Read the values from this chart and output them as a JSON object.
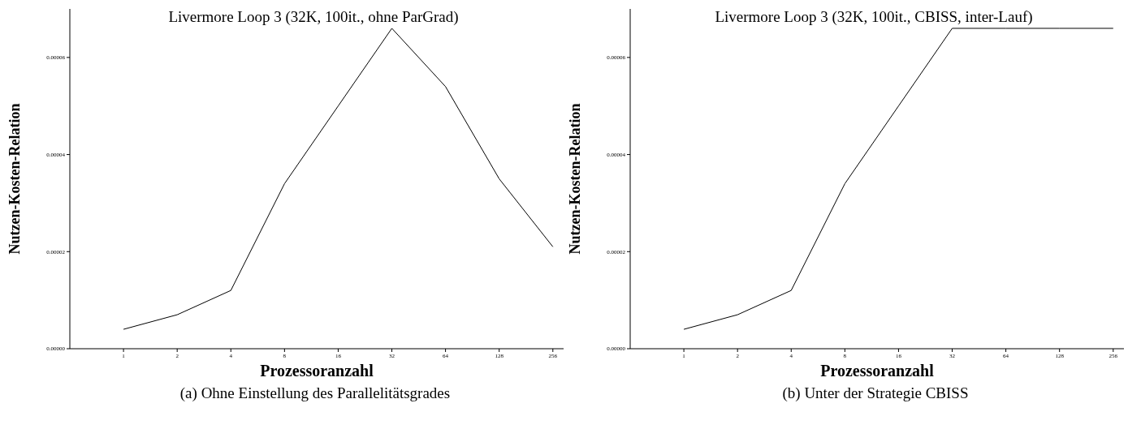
{
  "chart_data": [
    {
      "type": "line",
      "title": "Livermore Loop 3 (32K, 100it., ohne ParGrad)",
      "xlabel": "Prozessoranzahl",
      "ylabel": "Nutzen-Kosten-Relation",
      "categories": [
        "1",
        "2",
        "4",
        "8",
        "16",
        "32",
        "64",
        "128",
        "256"
      ],
      "series": [
        {
          "color": "#000000",
          "values": [
            4e-06,
            7e-06,
            1.2e-05,
            3.4e-05,
            5e-05,
            6.6e-05,
            5.4e-05,
            3.5e-05,
            2.1e-05
          ]
        }
      ],
      "ylim": [
        0,
        7e-05
      ],
      "yticks": [
        {
          "value": 0,
          "label": "0.00000"
        },
        {
          "value": 2e-05,
          "label": "0.00002"
        },
        {
          "value": 4e-05,
          "label": "0.00004"
        },
        {
          "value": 6e-05,
          "label": "0.00006"
        }
      ],
      "grid": false,
      "legend": false,
      "marker": "none",
      "line_style": "solid",
      "annotations": [
        "(a) Ohne Einstellung des Parallelitätsgrades"
      ]
    },
    {
      "type": "line",
      "title": "Livermore Loop 3 (32K, 100it., CBISS, inter-Lauf)",
      "xlabel": "Prozessoranzahl",
      "ylabel": "Nutzen-Kosten-Relation",
      "categories": [
        "1",
        "2",
        "4",
        "8",
        "16",
        "32",
        "64",
        "128",
        "256"
      ],
      "series": [
        {
          "color": "#000000",
          "values": [
            4e-06,
            7e-06,
            1.2e-05,
            3.4e-05,
            5e-05,
            6.6e-05,
            6.6e-05,
            6.6e-05,
            6.6e-05
          ]
        }
      ],
      "ylim": [
        0,
        7e-05
      ],
      "yticks": [
        {
          "value": 0,
          "label": "0.00000"
        },
        {
          "value": 2e-05,
          "label": "0.00002"
        },
        {
          "value": 4e-05,
          "label": "0.00004"
        },
        {
          "value": 6e-05,
          "label": "0.00006"
        }
      ],
      "grid": false,
      "legend": false,
      "marker": "none",
      "line_style": "solid",
      "annotations": [
        "(b) Unter der Strategie CBISS"
      ]
    }
  ]
}
